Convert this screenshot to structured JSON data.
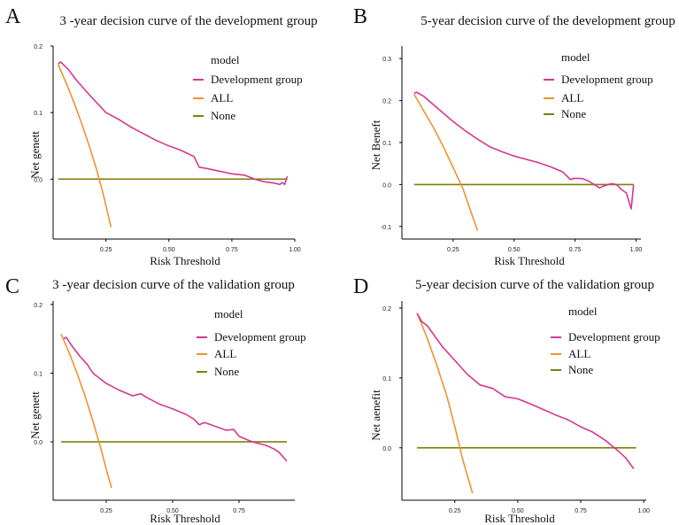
{
  "legend_labels": {
    "title": "model",
    "dev": "Development group",
    "all": "ALL",
    "none": "None"
  },
  "colors": {
    "dev": "#d6378f",
    "all": "#f0922e",
    "none": "#7f7f0a",
    "axis": "#000000"
  },
  "chart_data": [
    {
      "panel_letter": "A",
      "type": "line",
      "title": "3 -year decision curve of the development group",
      "xlabel": "Risk Threshold",
      "ylabel": "Net genett",
      "xlim": [
        0.04,
        1.0
      ],
      "ylim": [
        -0.09,
        0.2
      ],
      "xticks": [
        0.25,
        0.5,
        0.75,
        1.0
      ],
      "xtick_labels": [
        "0.25",
        "0.50",
        "0.75",
        "1.00"
      ],
      "yticks": [
        0.0,
        0.1,
        0.2
      ],
      "ytick_labels": [
        "0.0",
        "0.1",
        "0.2"
      ],
      "series": [
        {
          "name": "Development group",
          "x": [
            0.06,
            0.07,
            0.1,
            0.13,
            0.16,
            0.2,
            0.25,
            0.3,
            0.35,
            0.4,
            0.45,
            0.5,
            0.55,
            0.6,
            0.62,
            0.65,
            0.7,
            0.75,
            0.8,
            0.84,
            0.88,
            0.9,
            0.92,
            0.94,
            0.95,
            0.96,
            0.97
          ],
          "y": [
            0.173,
            0.176,
            0.165,
            0.15,
            0.137,
            0.12,
            0.1,
            0.09,
            0.078,
            0.068,
            0.058,
            0.05,
            0.043,
            0.034,
            0.018,
            0.016,
            0.012,
            0.008,
            0.006,
            0.0,
            -0.004,
            -0.005,
            -0.006,
            -0.008,
            -0.005,
            -0.008,
            0.004
          ]
        },
        {
          "name": "ALL",
          "x": [
            0.06,
            0.09,
            0.12,
            0.15,
            0.18,
            0.21,
            0.24,
            0.27
          ],
          "y": [
            0.172,
            0.146,
            0.118,
            0.087,
            0.054,
            0.018,
            -0.024,
            -0.072
          ]
        },
        {
          "name": "None",
          "x": [
            0.06,
            0.97
          ],
          "y": [
            0.0,
            0.0
          ]
        }
      ]
    },
    {
      "panel_letter": "B",
      "type": "line",
      "title": "5-year decision curve of the development group",
      "xlabel": "Risk Threshold",
      "ylabel": "Net Beneft",
      "xlim": [
        0.04,
        1.02
      ],
      "ylim": [
        -0.13,
        0.33
      ],
      "xticks": [
        0.25,
        0.5,
        0.75,
        1.0
      ],
      "xtick_labels": [
        "0.25",
        "0.50",
        "0.75",
        "1.00"
      ],
      "yticks": [
        -0.1,
        0.0,
        0.1,
        0.2,
        0.3
      ],
      "ytick_labels": [
        "-0.1",
        "0.0",
        "0.1",
        "0.2",
        "0.3"
      ],
      "series": [
        {
          "name": "Development group",
          "x": [
            0.09,
            0.1,
            0.13,
            0.16,
            0.2,
            0.25,
            0.3,
            0.35,
            0.4,
            0.45,
            0.5,
            0.55,
            0.6,
            0.65,
            0.7,
            0.73,
            0.75,
            0.78,
            0.8,
            0.82,
            0.85,
            0.87,
            0.9,
            0.92,
            0.94,
            0.96,
            0.98,
            0.99
          ],
          "y": [
            0.217,
            0.22,
            0.21,
            0.195,
            0.175,
            0.15,
            0.128,
            0.108,
            0.09,
            0.078,
            0.068,
            0.06,
            0.052,
            0.042,
            0.03,
            0.012,
            0.015,
            0.014,
            0.01,
            0.003,
            -0.008,
            -0.003,
            0.002,
            0.0,
            -0.012,
            -0.02,
            -0.058,
            0.0
          ]
        },
        {
          "name": "ALL",
          "x": [
            0.09,
            0.13,
            0.17,
            0.21,
            0.25,
            0.29,
            0.32,
            0.35
          ],
          "y": [
            0.215,
            0.175,
            0.135,
            0.09,
            0.04,
            -0.01,
            -0.06,
            -0.11
          ]
        },
        {
          "name": "None",
          "x": [
            0.09,
            0.99
          ],
          "y": [
            0.0,
            0.0
          ]
        }
      ]
    },
    {
      "panel_letter": "C",
      "type": "line",
      "title": "3 -year decision curve of the validation group",
      "xlabel": "Risk Threshold",
      "ylabel": "Net genett",
      "xlim": [
        0.05,
        0.96
      ],
      "ylim": [
        -0.085,
        0.205
      ],
      "xticks": [
        0.25,
        0.5,
        0.75
      ],
      "xtick_labels": [
        "0.25",
        "0.50",
        "0.75"
      ],
      "yticks": [
        0.0,
        0.1,
        0.2
      ],
      "ytick_labels": [
        "0.0",
        "0.1",
        "0.2"
      ],
      "series": [
        {
          "name": "Development group",
          "x": [
            0.09,
            0.1,
            0.12,
            0.15,
            0.18,
            0.2,
            0.25,
            0.3,
            0.35,
            0.38,
            0.4,
            0.45,
            0.5,
            0.55,
            0.58,
            0.6,
            0.62,
            0.65,
            0.7,
            0.73,
            0.75,
            0.8,
            0.85,
            0.88,
            0.9,
            0.93
          ],
          "y": [
            0.15,
            0.152,
            0.14,
            0.125,
            0.112,
            0.1,
            0.085,
            0.075,
            0.067,
            0.07,
            0.065,
            0.055,
            0.048,
            0.04,
            0.033,
            0.025,
            0.028,
            0.024,
            0.017,
            0.018,
            0.008,
            0.0,
            -0.005,
            -0.01,
            -0.015,
            -0.028
          ]
        },
        {
          "name": "ALL",
          "x": [
            0.08,
            0.11,
            0.14,
            0.17,
            0.2,
            0.23,
            0.25,
            0.27
          ],
          "y": [
            0.157,
            0.13,
            0.1,
            0.067,
            0.03,
            -0.01,
            -0.04,
            -0.067
          ]
        },
        {
          "name": "None",
          "x": [
            0.08,
            0.93
          ],
          "y": [
            0.0,
            0.0
          ]
        }
      ]
    },
    {
      "panel_letter": "D",
      "type": "line",
      "title": "5-year decision curve of the validation group",
      "xlabel": "Risk Threshold",
      "ylabel": "Net aenefit",
      "xlim": [
        0.04,
        1.01
      ],
      "ylim": [
        -0.075,
        0.21
      ],
      "xticks": [
        0.25,
        0.5,
        0.75,
        1.0
      ],
      "xtick_labels": [
        "0.25",
        "0.50",
        "0.75",
        "1.00"
      ],
      "yticks": [
        0.0,
        0.1,
        0.2
      ],
      "ytick_labels": [
        "0.0",
        "0.1",
        "0.2"
      ],
      "series": [
        {
          "name": "Development group",
          "x": [
            0.1,
            0.12,
            0.14,
            0.17,
            0.2,
            0.25,
            0.3,
            0.35,
            0.4,
            0.45,
            0.5,
            0.55,
            0.6,
            0.65,
            0.7,
            0.75,
            0.8,
            0.85,
            0.9,
            0.93,
            0.96
          ],
          "y": [
            0.192,
            0.18,
            0.175,
            0.16,
            0.145,
            0.125,
            0.105,
            0.09,
            0.085,
            0.073,
            0.07,
            0.063,
            0.055,
            0.047,
            0.04,
            0.03,
            0.022,
            0.01,
            -0.005,
            -0.015,
            -0.03
          ]
        },
        {
          "name": "ALL",
          "x": [
            0.1,
            0.14,
            0.18,
            0.22,
            0.25,
            0.28,
            0.3,
            0.32
          ],
          "y": [
            0.193,
            0.157,
            0.117,
            0.072,
            0.03,
            -0.015,
            -0.04,
            -0.065
          ]
        },
        {
          "name": "None",
          "x": [
            0.1,
            0.97
          ],
          "y": [
            0.0,
            0.0
          ]
        }
      ]
    }
  ]
}
